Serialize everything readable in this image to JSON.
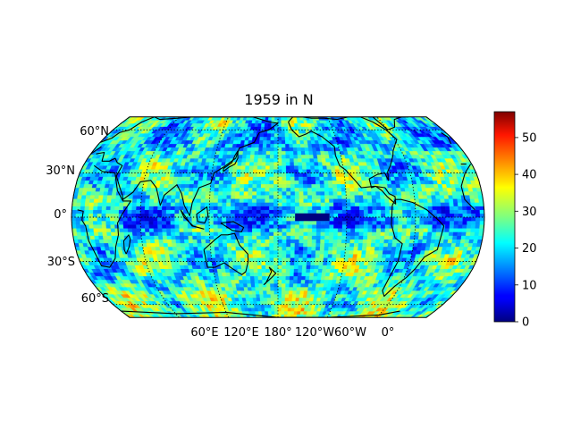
{
  "title": "1959 in N",
  "map": {
    "projection": "robinson",
    "central_longitude": 180,
    "lat_range": [
      -70,
      70
    ],
    "field_name": "N",
    "gridline_style": "dotted"
  },
  "lat_labels": [
    {
      "lat": 60,
      "text": "60°N"
    },
    {
      "lat": 30,
      "text": "30°N"
    },
    {
      "lat": 0,
      "text": "0°"
    },
    {
      "lat": -30,
      "text": "30°S"
    },
    {
      "lat": -60,
      "text": "60°S"
    }
  ],
  "lon_labels": [
    {
      "lon": 60,
      "text": "60°E"
    },
    {
      "lon": 120,
      "text": "120°E"
    },
    {
      "lon": 180,
      "text": "180°"
    },
    {
      "lon": 240,
      "text": "120°W"
    },
    {
      "lon": 300,
      "text": "60°W"
    },
    {
      "lon": 360,
      "text": "0°"
    }
  ],
  "colorbar": {
    "colormap": "jet",
    "min": 0,
    "max": 57,
    "ticks": [
      0,
      10,
      20,
      30,
      40,
      50
    ]
  },
  "missing_block": {
    "lon_range": [
      195,
      225
    ],
    "lat_range": [
      -2,
      2
    ],
    "color": "#00007f"
  }
}
